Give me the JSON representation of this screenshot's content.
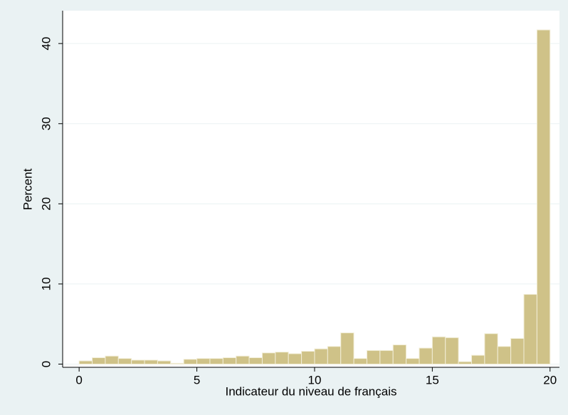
{
  "chart_data": {
    "type": "histogram",
    "xlabel": "Indicateur du niveau de français",
    "ylabel": "Percent",
    "bins": [
      0,
      0.5556,
      1.1111,
      1.6667,
      2.2222,
      2.7778,
      3.3333,
      3.8889,
      4.4444,
      5,
      5.5556,
      6.1111,
      6.6667,
      7.2222,
      7.7778,
      8.3333,
      8.8889,
      9.4444,
      10,
      10.5556,
      11.1111,
      11.6667,
      12.2222,
      12.7778,
      13.3333,
      13.8889,
      14.4444,
      15,
      15.5556,
      16.1111,
      16.6667,
      17.2222,
      17.7778,
      18.3333,
      18.8889,
      19.4444,
      20
    ],
    "values": [
      0.4,
      0.8,
      1.0,
      0.7,
      0.5,
      0.5,
      0.4,
      0.1,
      0.6,
      0.7,
      0.7,
      0.8,
      1.0,
      0.8,
      1.4,
      1.5,
      1.3,
      1.6,
      1.9,
      2.2,
      3.9,
      0.7,
      1.7,
      1.7,
      2.4,
      0.7,
      2.0,
      3.4,
      3.3,
      0.3,
      1.1,
      3.8,
      2.2,
      3.2,
      8.7,
      41.7
    ],
    "color": "#cfc288",
    "xlim": [
      -0.7,
      20.4
    ],
    "ylim": [
      -0.4,
      44.1
    ],
    "xticks": [
      0,
      5,
      10,
      15,
      20
    ],
    "yticks": [
      0,
      10,
      20,
      30,
      40
    ],
    "grid": true
  }
}
